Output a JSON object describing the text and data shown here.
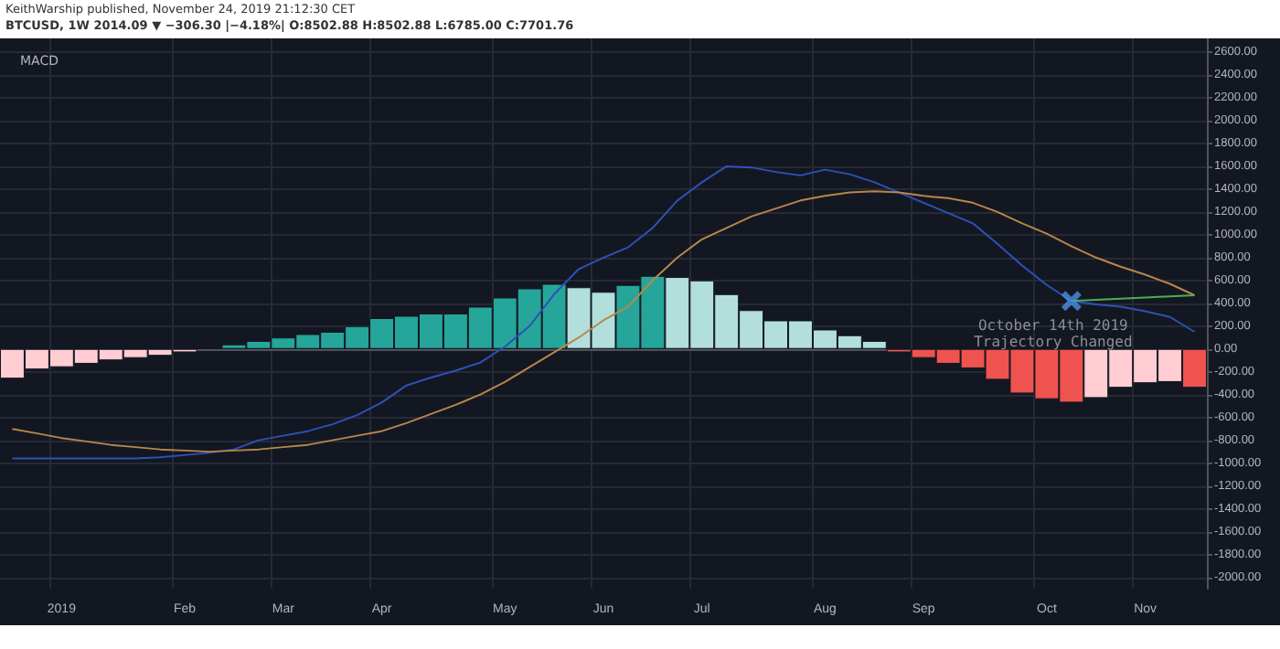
{
  "chart_data": {
    "type": "bar",
    "title": "MACD",
    "subtitle": "BTCUSD, 1W 2014.09 ▼ −306.30 |−4.18%| O:8502.88 H:8502.88 L:6785.00 C:7701.76",
    "annotations": [
      "KeithWarship published, November 24, 2019 21:12:30 CET",
      "October 14th 2019\nTrajectory Changed"
    ],
    "categories": [
      null,
      null,
      "2019",
      null,
      null,
      null,
      null,
      "Feb",
      null,
      null,
      null,
      "Mar",
      null,
      null,
      null,
      "Apr",
      null,
      null,
      null,
      null,
      "May",
      null,
      null,
      null,
      "Jun",
      null,
      null,
      null,
      "Jul",
      null,
      null,
      null,
      null,
      "Aug",
      null,
      null,
      null,
      "Sep",
      null,
      null,
      null,
      null,
      "Oct",
      null,
      null,
      null,
      "Nov",
      null,
      null
    ],
    "series": [
      {
        "values": [
          -260,
          -180,
          -160,
          -130,
          -100,
          -80,
          -60,
          -30,
          null,
          40,
          70,
          100,
          130,
          150,
          200,
          270,
          290,
          310,
          310,
          370,
          450,
          530,
          570,
          540,
          500,
          560,
          640,
          630,
          600,
          480,
          340,
          250,
          250,
          170,
          120,
          70,
          -30,
          -80,
          -130,
          -170,
          -270,
          -390,
          -440,
          -470,
          -430,
          -340,
          -300,
          -290,
          -340
        ],
        "colors": [
          "#ffcdd2",
          "#ffcdd2",
          "#ffcdd2",
          "#ffcdd2",
          "#ffcdd2",
          "#ffcdd2",
          "#ffcdd2",
          "#ffcdd2",
          "#26a69a",
          "#26a69a",
          "#26a69a",
          "#26a69a",
          "#26a69a",
          "#26a69a",
          "#26a69a",
          "#26a69a",
          "#26a69a",
          "#26a69a",
          "#26a69a",
          "#26a69a",
          "#26a69a",
          "#26a69a",
          "#26a69a",
          "#b2dfdb",
          "#b2dfdb",
          "#26a69a",
          "#26a69a",
          "#b2dfdb",
          "#b2dfdb",
          "#b2dfdb",
          "#b2dfdb",
          "#b2dfdb",
          "#b2dfdb",
          "#b2dfdb",
          "#b2dfdb",
          "#b2dfdb",
          "#ef5350",
          "#ef5350",
          "#ef5350",
          "#ef5350",
          "#ef5350",
          "#ef5350",
          "#ef5350",
          "#ef5350",
          "#ffcdd2",
          "#ffcdd2",
          "#ffcdd2",
          "#ffcdd2",
          "#ef5350"
        ]
      },
      {
        "type": "line",
        "color": "#2c52b8",
        "values": [
          -960,
          -960,
          -960,
          -960,
          -960,
          -960,
          -950,
          -930,
          -910,
          -880,
          -800,
          -760,
          -720,
          -660,
          -580,
          -470,
          -320,
          -250,
          -190,
          -120,
          20,
          200,
          480,
          700,
          800,
          890,
          1060,
          1300,
          1460,
          1600,
          1590,
          1550,
          1520,
          1570,
          1530,
          1460,
          1370,
          1280,
          1190,
          1100,
          920,
          730,
          560,
          420,
          390,
          370,
          330,
          280,
          150
        ]
      },
      {
        "type": "line",
        "color": "#b8864a",
        "values": [
          -700,
          -740,
          -780,
          -810,
          -840,
          -860,
          -880,
          -890,
          -900,
          -890,
          -880,
          -860,
          -840,
          -800,
          -760,
          -720,
          -650,
          -570,
          -490,
          -400,
          -290,
          -160,
          -30,
          100,
          250,
          370,
          600,
          800,
          960,
          1060,
          1160,
          1230,
          1300,
          1340,
          1370,
          1380,
          1370,
          1340,
          1320,
          1280,
          1200,
          1100,
          1010,
          900,
          800,
          720,
          650,
          570,
          470
        ]
      },
      {
        "type": "line",
        "color": "#4caf50",
        "values": [
          null,
          null,
          null,
          null,
          null,
          null,
          null,
          null,
          null,
          null,
          null,
          null,
          null,
          null,
          null,
          null,
          null,
          null,
          null,
          null,
          null,
          null,
          null,
          null,
          null,
          null,
          null,
          null,
          null,
          null,
          null,
          null,
          null,
          null,
          null,
          null,
          null,
          null,
          null,
          null,
          null,
          null,
          null,
          420,
          430,
          440,
          450,
          460,
          470
        ]
      },
      {
        "type": "scatter",
        "marker": "cross",
        "color": "#4a90e2",
        "values": [
          null,
          null,
          null,
          null,
          null,
          null,
          null,
          null,
          null,
          null,
          null,
          null,
          null,
          null,
          null,
          null,
          null,
          null,
          null,
          null,
          null,
          null,
          null,
          null,
          null,
          null,
          null,
          null,
          null,
          null,
          null,
          null,
          null,
          null,
          null,
          null,
          null,
          null,
          null,
          null,
          null,
          null,
          null,
          420,
          null,
          null,
          null,
          null,
          null
        ]
      }
    ],
    "marker": "none",
    "ylim": [
      -2100,
      2720
    ],
    "yticks": [
      {
        "value": 2600,
        "label": "2600.00"
      },
      {
        "value": 2400,
        "label": "2400.00"
      },
      {
        "value": 2200,
        "label": "2200.00"
      },
      {
        "value": 2000,
        "label": "2000.00"
      },
      {
        "value": 1800,
        "label": "1800.00"
      },
      {
        "value": 1600,
        "label": "1600.00"
      },
      {
        "value": 1400,
        "label": "1400.00"
      },
      {
        "value": 1200,
        "label": "1200.00"
      },
      {
        "value": 1000,
        "label": "1000.00"
      },
      {
        "value": 800,
        "label": "800.00"
      },
      {
        "value": 600,
        "label": "600.00"
      },
      {
        "value": 400,
        "label": "400.00"
      },
      {
        "value": 200,
        "label": "200.00"
      },
      {
        "value": 0,
        "label": "0.00"
      },
      {
        "value": -200,
        "label": "-200.00"
      },
      {
        "value": -400,
        "label": "-400.00"
      },
      {
        "value": -600,
        "label": "-600.00"
      },
      {
        "value": -800,
        "label": "-800.00"
      },
      {
        "value": -1000,
        "label": "-1000.00"
      },
      {
        "value": -1200,
        "label": "-1200.00"
      },
      {
        "value": -1400,
        "label": "-1400.00"
      },
      {
        "value": -1600,
        "label": "-1600.00"
      },
      {
        "value": -1800,
        "label": "-1800.00"
      },
      {
        "value": -2000,
        "label": "-2000.00"
      }
    ],
    "grid": true
  }
}
